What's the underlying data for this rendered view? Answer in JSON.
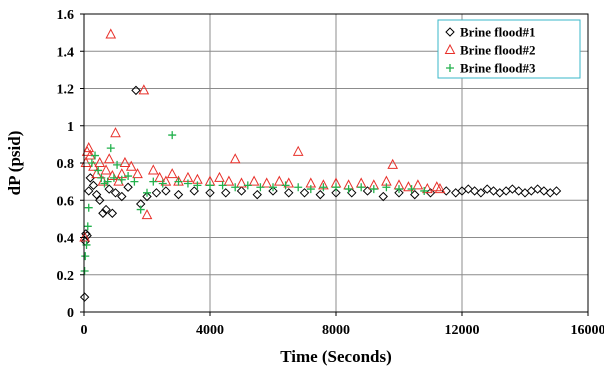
{
  "chart_data": {
    "type": "scatter",
    "xlabel": "Time (Seconds)",
    "ylabel": "dP (psid)",
    "xlim": [
      0,
      16000
    ],
    "ylim": [
      0,
      1.6
    ],
    "xticks": [
      0,
      4000,
      8000,
      12000,
      16000
    ],
    "yticks": [
      0,
      0.2,
      0.4,
      0.6,
      0.8,
      1,
      1.2,
      1.4,
      1.6
    ],
    "xtick_labels": [
      "0",
      "4000",
      "8000",
      "12000",
      "16000"
    ],
    "ytick_labels": [
      "0",
      "0.2",
      "0.4",
      "0.6",
      "0.8",
      "1",
      "1.2",
      "1.4",
      "1.6"
    ],
    "grid": true,
    "legend_position": "top-right",
    "series": [
      {
        "name": "Brine flood#1",
        "marker": "diamond",
        "color": "#000000",
        "points": [
          [
            20,
            0.08
          ],
          [
            40,
            0.38
          ],
          [
            60,
            0.42
          ],
          [
            100,
            0.41
          ],
          [
            150,
            0.65
          ],
          [
            200,
            0.72
          ],
          [
            300,
            0.68
          ],
          [
            400,
            0.63
          ],
          [
            500,
            0.6
          ],
          [
            600,
            0.53
          ],
          [
            700,
            0.55
          ],
          [
            800,
            0.66
          ],
          [
            900,
            0.53
          ],
          [
            1000,
            0.64
          ],
          [
            1200,
            0.62
          ],
          [
            1400,
            0.67
          ],
          [
            1650,
            1.19
          ],
          [
            1800,
            0.58
          ],
          [
            2000,
            0.62
          ],
          [
            2300,
            0.64
          ],
          [
            2600,
            0.65
          ],
          [
            3000,
            0.63
          ],
          [
            3500,
            0.65
          ],
          [
            4000,
            0.64
          ],
          [
            4500,
            0.64
          ],
          [
            5000,
            0.65
          ],
          [
            5500,
            0.63
          ],
          [
            6000,
            0.65
          ],
          [
            6500,
            0.64
          ],
          [
            7000,
            0.64
          ],
          [
            7500,
            0.63
          ],
          [
            8000,
            0.64
          ],
          [
            8500,
            0.64
          ],
          [
            9000,
            0.65
          ],
          [
            9500,
            0.62
          ],
          [
            10000,
            0.64
          ],
          [
            10500,
            0.63
          ],
          [
            11000,
            0.64
          ],
          [
            11500,
            0.65
          ],
          [
            11800,
            0.64
          ],
          [
            12000,
            0.65
          ],
          [
            12200,
            0.66
          ],
          [
            12400,
            0.65
          ],
          [
            12600,
            0.64
          ],
          [
            12800,
            0.66
          ],
          [
            13000,
            0.65
          ],
          [
            13200,
            0.64
          ],
          [
            13400,
            0.65
          ],
          [
            13600,
            0.66
          ],
          [
            13800,
            0.65
          ],
          [
            14000,
            0.64
          ],
          [
            14200,
            0.65
          ],
          [
            14400,
            0.66
          ],
          [
            14600,
            0.65
          ],
          [
            14800,
            0.64
          ],
          [
            15000,
            0.65
          ]
        ]
      },
      {
        "name": "Brine flood#2",
        "marker": "triangle",
        "color": "#e8302a",
        "points": [
          [
            20,
            0.4
          ],
          [
            60,
            0.8
          ],
          [
            100,
            0.86
          ],
          [
            150,
            0.88
          ],
          [
            200,
            0.84
          ],
          [
            300,
            0.78
          ],
          [
            400,
            0.74
          ],
          [
            500,
            0.8
          ],
          [
            600,
            0.7
          ],
          [
            700,
            0.76
          ],
          [
            800,
            0.82
          ],
          [
            850,
            1.49
          ],
          [
            900,
            0.73
          ],
          [
            1000,
            0.96
          ],
          [
            1100,
            0.7
          ],
          [
            1200,
            0.74
          ],
          [
            1300,
            0.8
          ],
          [
            1500,
            0.78
          ],
          [
            1700,
            0.74
          ],
          [
            1900,
            1.19
          ],
          [
            2000,
            0.52
          ],
          [
            2200,
            0.76
          ],
          [
            2400,
            0.72
          ],
          [
            2600,
            0.7
          ],
          [
            2800,
            0.74
          ],
          [
            3000,
            0.7
          ],
          [
            3300,
            0.72
          ],
          [
            3600,
            0.71
          ],
          [
            4000,
            0.7
          ],
          [
            4300,
            0.72
          ],
          [
            4600,
            0.7
          ],
          [
            4800,
            0.82
          ],
          [
            5000,
            0.69
          ],
          [
            5400,
            0.7
          ],
          [
            5800,
            0.69
          ],
          [
            6200,
            0.7
          ],
          [
            6500,
            0.69
          ],
          [
            6800,
            0.86
          ],
          [
            7200,
            0.69
          ],
          [
            7600,
            0.68
          ],
          [
            8000,
            0.69
          ],
          [
            8400,
            0.68
          ],
          [
            8800,
            0.69
          ],
          [
            9200,
            0.68
          ],
          [
            9600,
            0.7
          ],
          [
            9800,
            0.79
          ],
          [
            10000,
            0.68
          ],
          [
            10300,
            0.67
          ],
          [
            10600,
            0.68
          ],
          [
            10900,
            0.66
          ],
          [
            11200,
            0.67
          ],
          [
            11300,
            0.66
          ]
        ]
      },
      {
        "name": "Brine flood#3",
        "marker": "plus",
        "color": "#22b14c",
        "points": [
          [
            20,
            0.22
          ],
          [
            40,
            0.3
          ],
          [
            80,
            0.36
          ],
          [
            120,
            0.46
          ],
          [
            150,
            0.56
          ],
          [
            250,
            0.8
          ],
          [
            350,
            0.84
          ],
          [
            450,
            0.76
          ],
          [
            550,
            0.72
          ],
          [
            650,
            0.69
          ],
          [
            750,
            0.7
          ],
          [
            850,
            0.88
          ],
          [
            950,
            0.72
          ],
          [
            1050,
            0.79
          ],
          [
            1200,
            0.71
          ],
          [
            1400,
            0.73
          ],
          [
            1600,
            0.7
          ],
          [
            1800,
            0.55
          ],
          [
            2000,
            0.64
          ],
          [
            2200,
            0.7
          ],
          [
            2500,
            0.69
          ],
          [
            2800,
            0.95
          ],
          [
            3000,
            0.7
          ],
          [
            3300,
            0.69
          ],
          [
            3600,
            0.68
          ],
          [
            4000,
            0.68
          ],
          [
            4400,
            0.68
          ],
          [
            4800,
            0.67
          ],
          [
            5200,
            0.68
          ],
          [
            5600,
            0.67
          ],
          [
            6000,
            0.67
          ],
          [
            6400,
            0.68
          ],
          [
            6800,
            0.67
          ],
          [
            7200,
            0.66
          ],
          [
            7600,
            0.67
          ],
          [
            8000,
            0.67
          ],
          [
            8400,
            0.66
          ],
          [
            8800,
            0.67
          ],
          [
            9200,
            0.66
          ],
          [
            9600,
            0.67
          ],
          [
            10000,
            0.66
          ],
          [
            10400,
            0.66
          ],
          [
            10800,
            0.65
          ]
        ]
      }
    ]
  }
}
